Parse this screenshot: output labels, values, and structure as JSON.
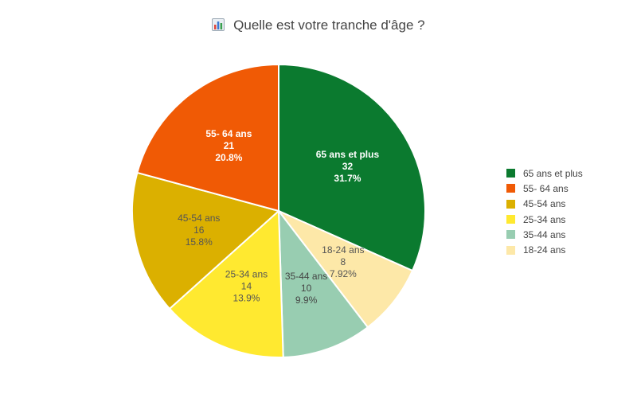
{
  "chart_data": {
    "type": "pie",
    "title": "Quelle est votre tranche d'âge ?",
    "title_icon": "bar-chart-icon",
    "slices": [
      {
        "label": "65 ans et plus",
        "value": 32,
        "percent": "31.7%",
        "color": "#0b7a2f",
        "text_color": "#ffffff",
        "bold": true
      },
      {
        "label": "18-24 ans",
        "value": 8,
        "percent": "7.92%",
        "color": "#fde8a8",
        "text_color": "#555555",
        "bold": false
      },
      {
        "label": "35-44 ans",
        "value": 10,
        "percent": "9.9%",
        "color": "#98cdb1",
        "text_color": "#444444",
        "bold": false
      },
      {
        "label": "25-34 ans",
        "value": 14,
        "percent": "13.9%",
        "color": "#ffe930",
        "text_color": "#555555",
        "bold": false
      },
      {
        "label": "45-54 ans",
        "value": 16,
        "percent": "15.8%",
        "color": "#dbb000",
        "text_color": "#555555",
        "bold": false
      },
      {
        "label": "55- 64 ans",
        "value": 21,
        "percent": "20.8%",
        "color": "#f05a05",
        "text_color": "#ffffff",
        "bold": true
      }
    ],
    "legend": {
      "placement": "right",
      "items": [
        {
          "label": "65 ans et plus",
          "color": "#0b7a2f"
        },
        {
          "label": "55- 64 ans",
          "color": "#f05a05"
        },
        {
          "label": "45-54 ans",
          "color": "#dbb000"
        },
        {
          "label": "25-34 ans",
          "color": "#ffe930"
        },
        {
          "label": "35-44 ans",
          "color": "#98cdb1"
        },
        {
          "label": "18-24 ans",
          "color": "#fde8a8"
        }
      ]
    }
  }
}
